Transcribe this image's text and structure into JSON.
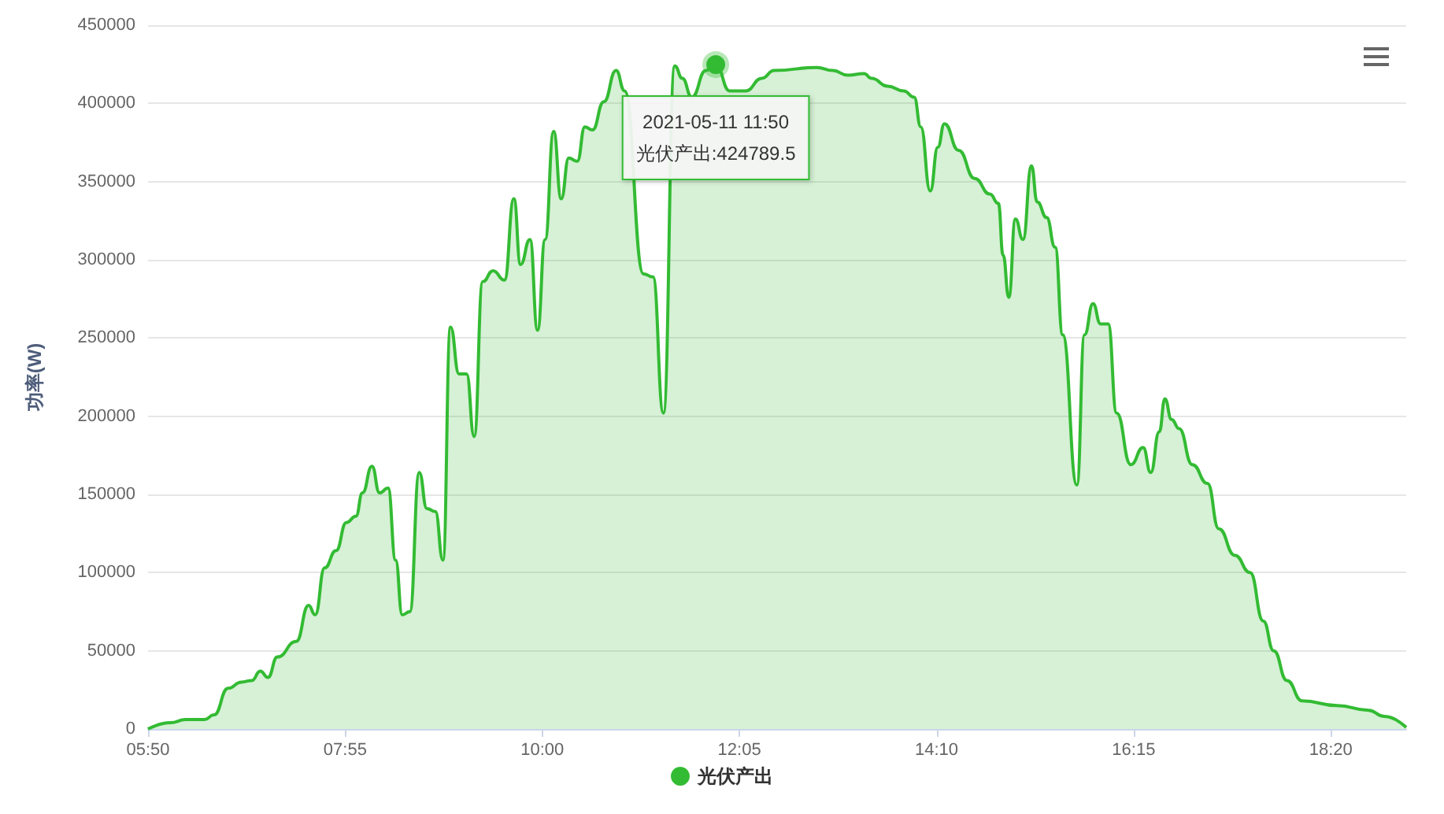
{
  "chart_data": {
    "type": "area",
    "ylabel": "功率(W)",
    "x": [
      5.8333,
      6.07,
      6.23,
      6.43,
      6.53,
      6.68,
      6.82,
      6.93,
      7.02,
      7.1,
      7.2,
      7.4,
      7.53,
      7.6,
      7.7,
      7.82,
      7.93,
      8.03,
      8.1,
      8.2,
      8.28,
      8.37,
      8.45,
      8.52,
      8.6,
      8.7,
      8.78,
      8.87,
      8.95,
      9.03,
      9.12,
      9.2,
      9.28,
      9.37,
      9.48,
      9.6,
      9.7,
      9.77,
      9.87,
      9.95,
      10.03,
      10.12,
      10.2,
      10.28,
      10.37,
      10.45,
      10.53,
      10.65,
      10.78,
      10.87,
      10.98,
      11.07,
      11.17,
      11.28,
      11.4,
      11.48,
      11.58,
      11.73,
      11.8333,
      11.98,
      12.15,
      12.32,
      12.45,
      12.57,
      12.9,
      13.07,
      13.23,
      13.4,
      13.48,
      13.65,
      13.82,
      13.93,
      14.0,
      14.1,
      14.18,
      14.25,
      14.4,
      14.57,
      14.73,
      14.82,
      14.87,
      14.93,
      15.0,
      15.08,
      15.17,
      15.23,
      15.33,
      15.42,
      15.5,
      15.65,
      15.73,
      15.82,
      15.9,
      15.98,
      16.07,
      16.22,
      16.35,
      16.43,
      16.52,
      16.58,
      16.65,
      16.73,
      16.87,
      17.03,
      17.15,
      17.32,
      17.48,
      17.62,
      17.73,
      17.87,
      18.03,
      18.4,
      18.73,
      18.9,
      19.13
    ],
    "series": [
      {
        "name": "光伏产出",
        "color": "#33bb33",
        "values": [
          0,
          4000,
          6000,
          6000,
          9000,
          26000,
          30000,
          31000,
          37000,
          33000,
          46000,
          56000,
          79000,
          73000,
          103000,
          114000,
          132000,
          136000,
          151000,
          168000,
          151000,
          154000,
          108000,
          73000,
          75000,
          164000,
          141000,
          139000,
          108000,
          257000,
          227000,
          227000,
          187000,
          286000,
          293000,
          287000,
          339000,
          297000,
          313000,
          255000,
          313000,
          382000,
          339000,
          365000,
          363000,
          385000,
          383000,
          401000,
          421000,
          408000,
          null,
          291000,
          289000,
          202000,
          424000,
          416000,
          404000,
          421000,
          424789.5,
          408000,
          408000,
          416000,
          421000,
          null,
          423000,
          421000,
          418000,
          419000,
          416000,
          411000,
          408000,
          404000,
          385000,
          344000,
          372000,
          387000,
          370000,
          352000,
          342000,
          336000,
          303000,
          276000,
          326000,
          313000,
          360000,
          337000,
          327000,
          308000,
          252000,
          156000,
          252000,
          272000,
          259000,
          259000,
          202000,
          169000,
          180000,
          164000,
          190000,
          211000,
          198000,
          192000,
          169000,
          157000,
          128000,
          111000,
          100000,
          69000,
          50000,
          31000,
          18000,
          15000,
          12000,
          8000,
          1000
        ]
      }
    ],
    "xlim": [
      5.8333,
      19.13
    ],
    "xticks": [
      {
        "value": 5.8333,
        "label": "05:50"
      },
      {
        "value": 7.9167,
        "label": "07:55"
      },
      {
        "value": 10,
        "label": "10:00"
      },
      {
        "value": 12.0833,
        "label": "12:05"
      },
      {
        "value": 14.1667,
        "label": "14:10"
      },
      {
        "value": 16.25,
        "label": "16:15"
      },
      {
        "value": 18.3333,
        "label": "18:20"
      }
    ],
    "ylim": [
      0,
      450000
    ],
    "yticks": [
      0,
      50000,
      100000,
      150000,
      200000,
      250000,
      300000,
      350000,
      400000,
      450000
    ],
    "grid": "y",
    "legend": "bottom",
    "marker": "none",
    "line_style": "solid",
    "annotations": [
      {
        "text": "2021-05-11 11:50\n光伏产出:424789.5",
        "x": 11.8333,
        "y": 424789.5
      }
    ]
  }
}
